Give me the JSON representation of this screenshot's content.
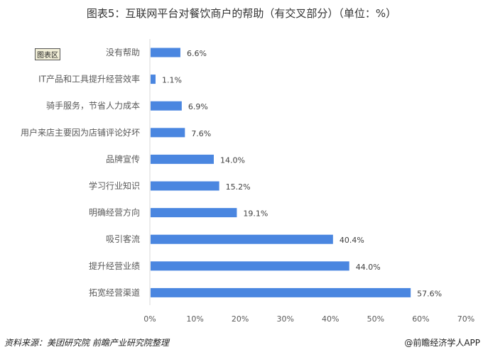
{
  "title": "图表5：互联网平台对餐饮商户的帮助（有交叉部分）（单位：%）",
  "badge": "图表区",
  "source": "资料来源：美团研究院 前瞻产业研究院整理",
  "credit": "@前瞻经济学人APP",
  "colors": {
    "bar": "#4a86e0",
    "axis": "#d9d9d9",
    "text": "#595959"
  },
  "chart_data": {
    "type": "bar",
    "orientation": "horizontal",
    "title": "图表5：互联网平台对餐饮商户的帮助（有交叉部分）（单位：%）",
    "categories": [
      "没有帮助",
      "IT产品和工具提升经营效率",
      "骑手服务，节省人力成本",
      "用户来店主要因为店铺评论好坏",
      "品牌宣传",
      "学习行业知识",
      "明确经营方向",
      "吸引客流",
      "提升经营业绩",
      "拓宽经营渠道"
    ],
    "values": [
      6.6,
      1.1,
      6.9,
      7.6,
      14.0,
      15.2,
      19.1,
      40.4,
      44.0,
      57.6
    ],
    "labels": [
      "6.6%",
      "1.1%",
      "6.9%",
      "7.6%",
      "14.0%",
      "15.2%",
      "19.1%",
      "40.4%",
      "44.0%",
      "57.6%"
    ],
    "xlim": [
      0,
      70
    ],
    "xticks": [
      "0%",
      "10%",
      "20%",
      "30%",
      "40%",
      "50%",
      "60%",
      "70%"
    ],
    "grid": false,
    "legend": "none"
  }
}
